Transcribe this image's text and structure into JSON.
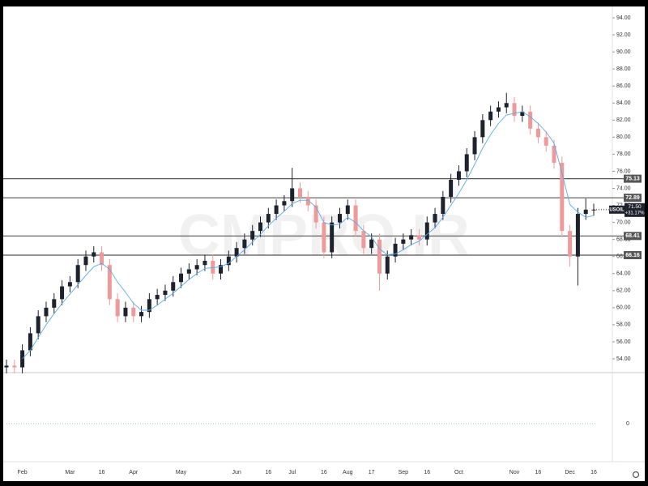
{
  "chart_data": {
    "type": "candlestick",
    "watermark": "CMPRO.IR",
    "symbol": "USOIL",
    "last_price_label": "71.50",
    "change": "+31.17%",
    "colors": {
      "up": "#1e222d",
      "down": "#ef9a9a",
      "ma": "#5aa9e6",
      "level": "#555555"
    },
    "categories": [
      null,
      null,
      "Feb",
      null,
      null,
      null,
      null,
      null,
      "Mar",
      null,
      null,
      null,
      "16",
      null,
      null,
      null,
      "Apr",
      null,
      null,
      null,
      null,
      null,
      "May",
      null,
      null,
      null,
      null,
      null,
      null,
      "Jun",
      null,
      null,
      null,
      "16",
      null,
      null,
      "Jul",
      null,
      null,
      null,
      "16",
      null,
      null,
      "Aug",
      null,
      null,
      "17",
      null,
      null,
      null,
      "Sep",
      null,
      null,
      "16",
      null,
      null,
      null,
      "Oct",
      null,
      null,
      null,
      null,
      null,
      null,
      "Nov",
      null,
      null,
      "16",
      null,
      null,
      null,
      "Dec",
      null,
      null,
      "16"
    ],
    "open": [
      53.0,
      53.2,
      53.0,
      55.0,
      57.0,
      59.0,
      60.0,
      61.0,
      62.5,
      63.0,
      65.0,
      66.0,
      66.5,
      65.0,
      61.0,
      59.0,
      60.0,
      59.0,
      59.5,
      61.0,
      61.5,
      62.0,
      63.0,
      64.0,
      64.5,
      65.0,
      65.5,
      64.0,
      65.0,
      66.0,
      67.0,
      68.0,
      69.0,
      70.0,
      71.0,
      72.0,
      72.5,
      74.0,
      73.0,
      72.0,
      70.0,
      66.5,
      70.0,
      71.0,
      72.0,
      69.0,
      67.0,
      68.0,
      64.0,
      66.0,
      67.5,
      68.0,
      68.5,
      68.0,
      70.0,
      71.0,
      73.0,
      75.0,
      76.0,
      78.0,
      80.0,
      82.0,
      83.0,
      83.5,
      84.0,
      82.5,
      83.0,
      81.0,
      80.0,
      79.0,
      77.0,
      69.0,
      66.0,
      71.0,
      71.5
    ],
    "high": [
      53.9,
      53.9,
      55.7,
      57.7,
      59.7,
      60.7,
      61.7,
      63.2,
      63.7,
      65.7,
      66.7,
      67.2,
      67.2,
      65.7,
      61.7,
      60.7,
      60.7,
      60.2,
      61.7,
      62.2,
      62.7,
      63.7,
      64.7,
      65.2,
      65.7,
      66.2,
      66.2,
      65.7,
      66.7,
      67.7,
      68.7,
      69.7,
      70.7,
      71.7,
      72.7,
      73.2,
      76.4,
      74.7,
      73.7,
      72.7,
      70.7,
      70.7,
      71.7,
      72.7,
      72.7,
      69.7,
      68.7,
      68.7,
      66.7,
      68.2,
      68.7,
      69.2,
      69.2,
      70.7,
      71.7,
      73.7,
      75.7,
      76.7,
      78.7,
      80.7,
      82.7,
      83.7,
      84.2,
      85.2,
      84.7,
      83.7,
      83.7,
      81.7,
      80.7,
      79.7,
      77.7,
      69.7,
      71.7,
      72.8,
      72.2
    ],
    "low": [
      52.3,
      52.3,
      52.3,
      54.3,
      56.3,
      58.3,
      59.3,
      60.3,
      61.8,
      62.3,
      64.3,
      65.3,
      64.3,
      60.3,
      58.3,
      58.3,
      58.3,
      58.3,
      58.8,
      60.3,
      60.8,
      61.3,
      62.3,
      63.3,
      63.8,
      64.3,
      63.3,
      63.3,
      64.3,
      65.3,
      66.3,
      67.3,
      68.3,
      69.3,
      70.3,
      71.3,
      71.8,
      72.3,
      71.3,
      69.3,
      65.8,
      65.8,
      69.3,
      70.3,
      68.3,
      66.3,
      66.3,
      62.0,
      63.3,
      65.3,
      66.8,
      67.3,
      67.3,
      67.3,
      69.3,
      70.3,
      72.3,
      74.3,
      75.3,
      77.3,
      79.3,
      81.3,
      82.3,
      82.8,
      81.8,
      81.8,
      80.3,
      79.3,
      78.3,
      76.3,
      68.3,
      64.8,
      62.6,
      70.3,
      70.8
    ],
    "close": [
      53.2,
      53.0,
      55.0,
      57.0,
      59.0,
      60.0,
      61.0,
      62.5,
      63.0,
      65.0,
      66.0,
      66.5,
      65.0,
      61.0,
      59.0,
      60.0,
      59.0,
      59.5,
      61.0,
      61.5,
      62.0,
      63.0,
      64.0,
      64.5,
      65.0,
      65.5,
      64.0,
      65.0,
      66.0,
      67.0,
      68.0,
      69.0,
      70.0,
      71.0,
      72.0,
      72.5,
      74.0,
      73.0,
      72.0,
      70.0,
      66.5,
      70.0,
      71.0,
      72.0,
      69.0,
      67.0,
      68.0,
      64.0,
      66.0,
      67.5,
      68.0,
      68.5,
      68.0,
      70.0,
      71.0,
      73.0,
      75.0,
      76.0,
      78.0,
      80.0,
      82.0,
      83.0,
      83.5,
      84.0,
      82.5,
      83.0,
      81.0,
      80.0,
      79.0,
      77.0,
      69.0,
      66.0,
      71.0,
      71.5,
      71.5
    ],
    "ma": {
      "values": [
        null,
        null,
        54,
        55,
        56.5,
        58,
        59.3,
        60.5,
        61.6,
        62.7,
        63.8,
        64.8,
        65.2,
        64.5,
        63,
        61.8,
        60.5,
        59.7,
        59.7,
        60.3,
        61,
        61.7,
        62.5,
        63.3,
        64,
        64.6,
        64.7,
        64.8,
        65.2,
        66,
        66.8,
        67.7,
        68.6,
        69.6,
        70.5,
        71.3,
        72.2,
        72.6,
        72.6,
        71.8,
        70,
        69.7,
        69.8,
        70.6,
        70,
        69,
        68.3,
        66.9,
        66.2,
        66.3,
        66.8,
        67.4,
        67.8,
        68.6,
        69.4,
        70.6,
        72,
        73.4,
        75,
        76.8,
        78.7,
        80.3,
        81.6,
        82.6,
        82.8,
        83,
        82.4,
        81.6,
        80.6,
        79.3,
        75.8,
        72.1,
        71.2,
        70.6,
        70.8
      ]
    },
    "levels": [
      75.13,
      72.89,
      68.41,
      66.16
    ],
    "ylim": [
      54,
      94
    ],
    "yticks": [
      {
        "value": 54,
        "label": "54.00"
      },
      {
        "value": 56,
        "label": "56.00"
      },
      {
        "value": 58,
        "label": "58.00"
      },
      {
        "value": 60,
        "label": "60.00"
      },
      {
        "value": 62,
        "label": "62.00"
      },
      {
        "value": 64,
        "label": "64.00"
      },
      {
        "value": 66,
        "label": "66.00"
      },
      {
        "value": 68,
        "label": "68.00"
      },
      {
        "value": 70,
        "label": "70.00"
      },
      {
        "value": 72,
        "label": "72.00"
      },
      {
        "value": 74,
        "label": "74.00"
      },
      {
        "value": 76,
        "label": "76.00"
      },
      {
        "value": 78,
        "label": "78.00"
      },
      {
        "value": 80,
        "label": "80.00"
      },
      {
        "value": 82,
        "label": "82.00"
      },
      {
        "value": 84,
        "label": "84.00"
      },
      {
        "value": 86,
        "label": "86.00"
      },
      {
        "value": 88,
        "label": "88.00"
      },
      {
        "value": 90,
        "label": "90.00"
      },
      {
        "value": 92,
        "label": "92.00"
      },
      {
        "value": 94,
        "label": "94.00"
      }
    ],
    "indicator_pane": {
      "ylim": [
        -1,
        1
      ],
      "yticks": [
        0
      ]
    }
  }
}
